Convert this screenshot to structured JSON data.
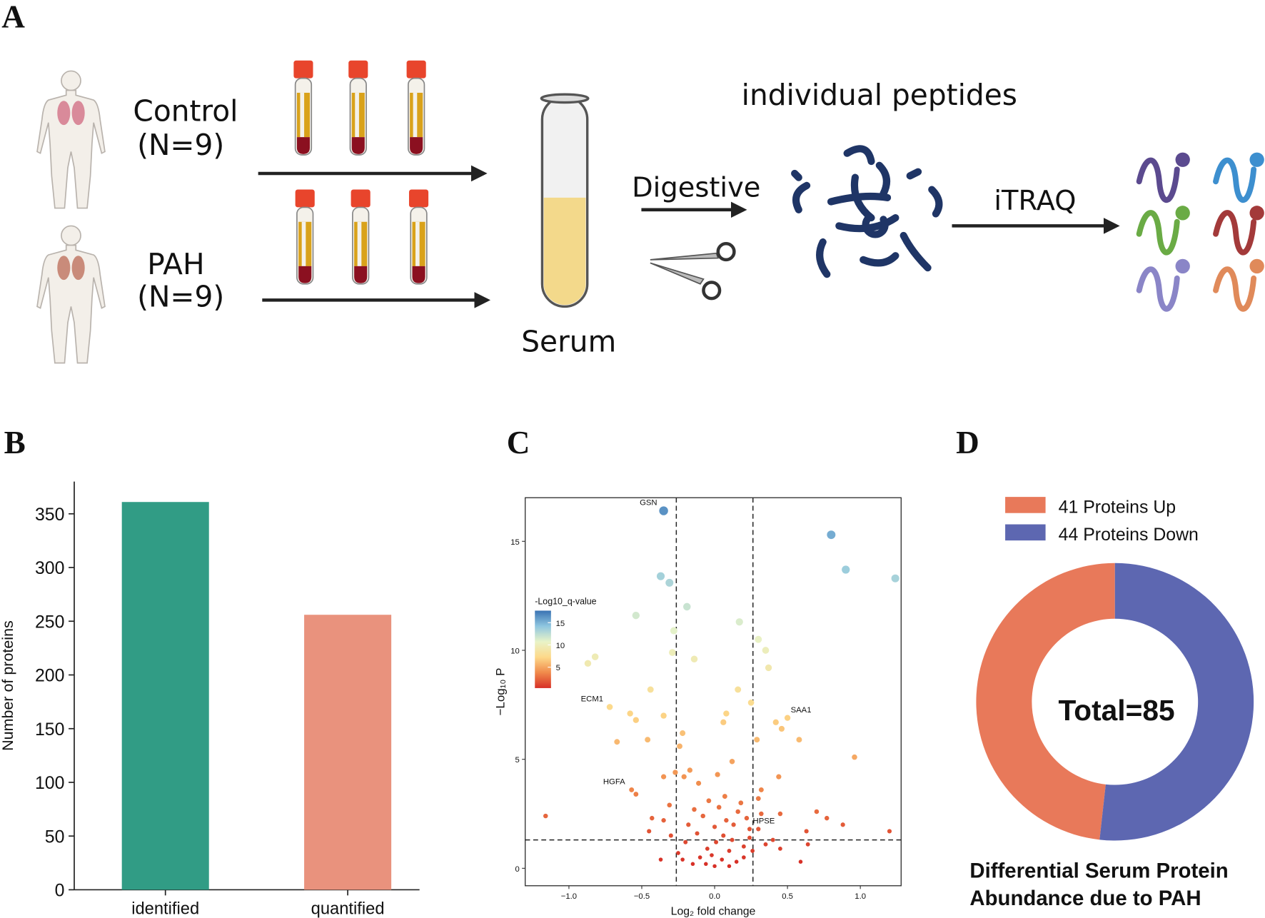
{
  "diagram": {
    "label": "A",
    "control": "Control",
    "control_n": "(N=9)",
    "pah": "PAH",
    "pah_n": "(N=9)",
    "serum": "Serum",
    "digestive": "Digestive",
    "peptides": "individual peptides",
    "itraq": "iTRAQ"
  },
  "chart_data": [
    {
      "type": "bar",
      "panel_label": "B",
      "ylabel": "Number of proteins",
      "categories": [
        "identified",
        "quantified"
      ],
      "values": [
        361,
        256
      ],
      "colors": [
        "#319c85",
        "#e9927d"
      ],
      "ylim": [
        0,
        380
      ],
      "yticks": [
        0,
        50,
        100,
        150,
        200,
        250,
        300,
        350
      ]
    },
    {
      "type": "scatter",
      "panel_label": "C",
      "xlabel": "Log₂ fold change",
      "ylabel": "−Log₁₀ P",
      "xlim": [
        -1.3,
        1.28
      ],
      "ylim": [
        -0.8,
        17
      ],
      "xticks": [
        {
          "value": -1,
          "label": "−1.0"
        },
        {
          "value": -0.5,
          "label": "−0.5"
        },
        {
          "value": 0,
          "label": "0.0"
        },
        0.5,
        {
          "value": 1,
          "label": "1.0"
        }
      ],
      "yticks": [
        0,
        5,
        10,
        15
      ],
      "thresholds": {
        "x": [
          -0.263,
          0.263
        ],
        "y": 1.3
      },
      "colorbar_title": "-Log10_q-value",
      "colorbar_lim": [
        0.3,
        17.7
      ],
      "colorbar_ticks": [
        5,
        10,
        15
      ],
      "colorscale": [
        "#d73027",
        "#f08a4b",
        "#fdd98a",
        "#e8f3c8",
        "#8fc6e0",
        "#3a73b3"
      ],
      "labeled_points": {
        "labels": [
          "GSN",
          "ECM1",
          "SAA1",
          "HGFA",
          "HPSE"
        ],
        "x": [
          -0.35,
          -0.72,
          0.5,
          -0.57,
          0.24
        ],
        "y": [
          16.4,
          7.4,
          6.9,
          3.6,
          1.8
        ]
      },
      "points": {
        "x": [
          0.8,
          0.9,
          1.24,
          -0.37,
          -0.31,
          -0.19,
          -0.54,
          0.17,
          -0.28,
          0.3,
          0.35,
          -0.82,
          -0.87,
          -0.14,
          -0.29,
          0.37,
          -0.44,
          0.16,
          0.25,
          -0.58,
          0.08,
          0.42,
          -0.54,
          -0.35,
          0.06,
          0.46,
          -0.22,
          -0.46,
          -0.67,
          0.29,
          0.58,
          -0.24,
          0.96,
          0.12,
          -0.27,
          -0.17,
          -0.21,
          0.44,
          -0.35,
          0.02,
          -0.54,
          -0.11,
          0.32,
          -1.16,
          0.7,
          0.88,
          1.2,
          0.77,
          0.45,
          0.3,
          -0.31,
          -0.45,
          -0.43,
          0.63,
          0.64,
          0.59,
          -0.37,
          -0.15,
          -0.1,
          -0.05,
          0,
          0.05,
          0.1,
          0.15,
          0.2,
          -0.2,
          -0.12,
          0,
          0.08,
          0.16,
          0.24,
          -0.25,
          -0.08,
          0.03,
          0.12,
          0.3,
          0.35,
          -0.3,
          -0.18,
          0.2,
          -0.02,
          0.06,
          0.1,
          -0.06,
          0.26,
          0.4,
          0.45,
          -0.35,
          -0.22,
          0.18,
          0.07,
          -0.04,
          0.13,
          0.22,
          -0.14,
          0.32,
          0.01
        ],
        "y": [
          15.3,
          13.7,
          13.3,
          13.4,
          13.1,
          12.0,
          11.6,
          11.3,
          10.9,
          10.5,
          10.0,
          9.7,
          9.4,
          9.6,
          9.9,
          9.2,
          8.2,
          8.2,
          7.6,
          7.1,
          7.1,
          6.7,
          6.8,
          7.0,
          6.7,
          6.4,
          6.2,
          5.9,
          5.8,
          5.9,
          5.9,
          5.6,
          5.1,
          4.9,
          4.4,
          4.5,
          4.2,
          4.2,
          4.2,
          4.3,
          3.4,
          3.9,
          3.6,
          2.4,
          2.6,
          2.0,
          1.7,
          2.3,
          2.5,
          3.2,
          2.9,
          1.7,
          2.3,
          1.7,
          1.1,
          0.3,
          0.4,
          0.2,
          0.5,
          0.9,
          0.1,
          0.4,
          0.8,
          0.3,
          1.0,
          1.2,
          1.6,
          1.9,
          2.2,
          2.6,
          1.4,
          0.7,
          2.4,
          2.8,
          1.3,
          1.8,
          1.1,
          1.5,
          2.0,
          0.5,
          0.6,
          1.5,
          0.1,
          0.2,
          0.8,
          1.3,
          0.9,
          2.2,
          0.4,
          3.0,
          3.3,
          3.1,
          2.0,
          2.3,
          2.7,
          2.5,
          1.2
        ]
      }
    },
    {
      "type": "pie",
      "panel_label": "D",
      "center_text": "Total=85",
      "title": [
        "Differential Serum Protein",
        "Abundance due to PAH"
      ],
      "series": [
        {
          "name": "41 Proteins Up",
          "color": "#e8795a",
          "value": 41
        },
        {
          "name": "44 Proteins Down",
          "color": "#5d67b1",
          "value": 44
        }
      ]
    }
  ]
}
